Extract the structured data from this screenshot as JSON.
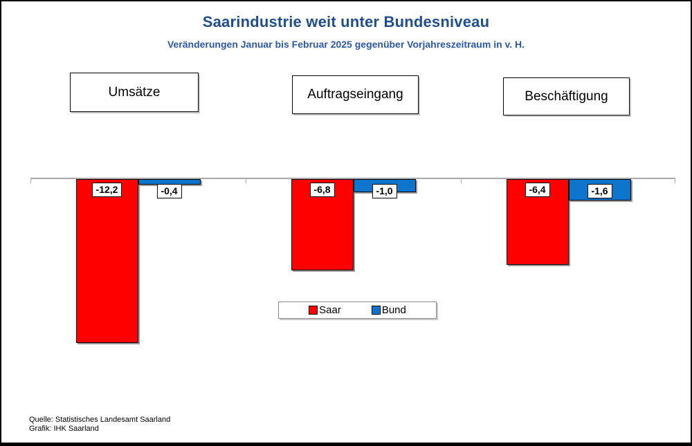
{
  "header": {
    "title": "Saarindustrie weit unter Bundesniveau",
    "subtitle": "Veränderungen Januar bis Februar 2025 gegenüber Vorjahreszeitraum in v. H.",
    "title_color": "#1F4E8C",
    "subtitle_color": "#2A57A8"
  },
  "category_boxes": [
    {
      "label": "Umsätze"
    },
    {
      "label": "Auftragseingang"
    },
    {
      "label": "Beschäftigung"
    }
  ],
  "chart_data": {
    "type": "bar",
    "title": "Saarindustrie weit unter Bundesniveau",
    "subtitle": "Veränderungen Januar bis Februar 2025 gegenüber Vorjahreszeitraum in v. H.",
    "categories": [
      "Umsätze",
      "Auftragseingang",
      "Beschäftigung"
    ],
    "series": [
      {
        "name": "Saar",
        "color": "#FF0000",
        "values": [
          -12.2,
          -6.8,
          -6.4
        ],
        "labels": [
          "-12,2",
          "-6,8",
          "-6,4"
        ]
      },
      {
        "name": "Bund",
        "color": "#0E74CC",
        "values": [
          -0.4,
          -1.0,
          -1.6
        ],
        "labels": [
          "-0,4",
          "-1,0",
          "-1,6"
        ]
      }
    ],
    "unit": "v. H. (percent change)",
    "baseline": 0,
    "ylim": [
      -13,
      0.5
    ],
    "grid": false,
    "axis_color": "#A9A9A9",
    "legend_position": "bottom-center"
  },
  "legend": {
    "entries": [
      {
        "label": "Saar",
        "color": "#FF0000"
      },
      {
        "label": "Bund",
        "color": "#0E74CC"
      }
    ]
  },
  "footer": {
    "line1": "Quelle: Statistisches Landesamt Saarland",
    "line2": "Grafik: IHK Saarland"
  }
}
